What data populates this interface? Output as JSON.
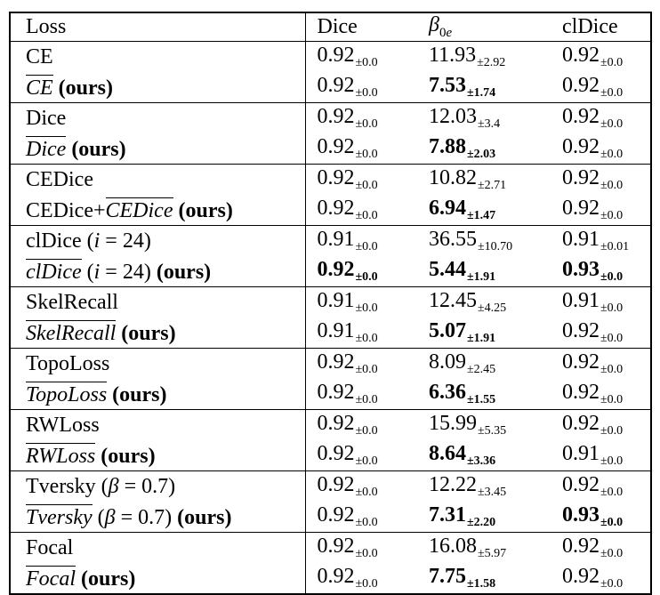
{
  "table": {
    "pm": "±",
    "ours_label": "(ours)",
    "columns": [
      {
        "key": "loss",
        "label": "Loss"
      },
      {
        "key": "dice",
        "label": "Dice"
      },
      {
        "key": "b0e",
        "base": "β",
        "sub_num": "0",
        "sub_letter": "e"
      },
      {
        "key": "cldice",
        "label": "clDice"
      }
    ],
    "groups": [
      {
        "rows": [
          {
            "label": [
              {
                "t": "CE",
                "s": "plain"
              }
            ],
            "ours": false,
            "dice": {
              "v": "0.92",
              "sd": "0.0",
              "bold": false
            },
            "b0e": {
              "v": "11.93",
              "sd": "2.92",
              "bold": false
            },
            "cldice": {
              "v": "0.92",
              "sd": "0.0",
              "bold": false
            }
          },
          {
            "label": [
              {
                "t": "CE",
                "s": "ov"
              }
            ],
            "ours": true,
            "dice": {
              "v": "0.92",
              "sd": "0.0",
              "bold": false
            },
            "b0e": {
              "v": "7.53",
              "sd": "1.74",
              "bold": true
            },
            "cldice": {
              "v": "0.92",
              "sd": "0.0",
              "bold": false
            }
          }
        ]
      },
      {
        "rows": [
          {
            "label": [
              {
                "t": "Dice",
                "s": "plain"
              }
            ],
            "ours": false,
            "dice": {
              "v": "0.92",
              "sd": "0.0",
              "bold": false
            },
            "b0e": {
              "v": "12.03",
              "sd": "3.4",
              "bold": false
            },
            "cldice": {
              "v": "0.92",
              "sd": "0.0",
              "bold": false
            }
          },
          {
            "label": [
              {
                "t": "Dice",
                "s": "ov"
              }
            ],
            "ours": true,
            "dice": {
              "v": "0.92",
              "sd": "0.0",
              "bold": false
            },
            "b0e": {
              "v": "7.88",
              "sd": "2.03",
              "bold": true
            },
            "cldice": {
              "v": "0.92",
              "sd": "0.0",
              "bold": false
            }
          }
        ]
      },
      {
        "rows": [
          {
            "label": [
              {
                "t": "CEDice",
                "s": "plain"
              }
            ],
            "ours": false,
            "dice": {
              "v": "0.92",
              "sd": "0.0",
              "bold": false
            },
            "b0e": {
              "v": "10.82",
              "sd": "2.71",
              "bold": false
            },
            "cldice": {
              "v": "0.92",
              "sd": "0.0",
              "bold": false
            }
          },
          {
            "label": [
              {
                "t": "CEDice+",
                "s": "plain"
              },
              {
                "t": "CEDice",
                "s": "ov"
              }
            ],
            "ours": true,
            "dice": {
              "v": "0.92",
              "sd": "0.0",
              "bold": false
            },
            "b0e": {
              "v": "6.94",
              "sd": "1.47",
              "bold": true
            },
            "cldice": {
              "v": "0.92",
              "sd": "0.0",
              "bold": false
            }
          }
        ]
      },
      {
        "rows": [
          {
            "label": [
              {
                "t": "clDice (",
                "s": "plain"
              },
              {
                "t": "i",
                "s": "it"
              },
              {
                "t": " = 24)",
                "s": "plain"
              }
            ],
            "ours": false,
            "dice": {
              "v": "0.91",
              "sd": "0.0",
              "bold": false
            },
            "b0e": {
              "v": "36.55",
              "sd": "10.70",
              "bold": false
            },
            "cldice": {
              "v": "0.91",
              "sd": "0.01",
              "bold": false
            }
          },
          {
            "label": [
              {
                "t": "clDice",
                "s": "ov"
              },
              {
                "t": " (",
                "s": "plain"
              },
              {
                "t": "i",
                "s": "it"
              },
              {
                "t": " = 24)",
                "s": "plain"
              }
            ],
            "ours": true,
            "dice": {
              "v": "0.92",
              "sd": "0.0",
              "bold": true
            },
            "b0e": {
              "v": "5.44",
              "sd": "1.91",
              "bold": true
            },
            "cldice": {
              "v": "0.93",
              "sd": "0.0",
              "bold": true
            }
          }
        ]
      },
      {
        "rows": [
          {
            "label": [
              {
                "t": "SkelRecall",
                "s": "plain"
              }
            ],
            "ours": false,
            "dice": {
              "v": "0.91",
              "sd": "0.0",
              "bold": false
            },
            "b0e": {
              "v": "12.45",
              "sd": "4.25",
              "bold": false
            },
            "cldice": {
              "v": "0.91",
              "sd": "0.0",
              "bold": false
            }
          },
          {
            "label": [
              {
                "t": "SkelRecall",
                "s": "ov"
              }
            ],
            "ours": true,
            "dice": {
              "v": "0.91",
              "sd": "0.0",
              "bold": false
            },
            "b0e": {
              "v": "5.07",
              "sd": "1.91",
              "bold": true
            },
            "cldice": {
              "v": "0.92",
              "sd": "0.0",
              "bold": false
            }
          }
        ]
      },
      {
        "rows": [
          {
            "label": [
              {
                "t": "TopoLoss",
                "s": "plain"
              }
            ],
            "ours": false,
            "dice": {
              "v": "0.92",
              "sd": "0.0",
              "bold": false
            },
            "b0e": {
              "v": "8.09",
              "sd": "2.45",
              "bold": false
            },
            "cldice": {
              "v": "0.92",
              "sd": "0.0",
              "bold": false
            }
          },
          {
            "label": [
              {
                "t": "TopoLoss",
                "s": "ov"
              }
            ],
            "ours": true,
            "dice": {
              "v": "0.92",
              "sd": "0.0",
              "bold": false
            },
            "b0e": {
              "v": "6.36",
              "sd": "1.55",
              "bold": true
            },
            "cldice": {
              "v": "0.92",
              "sd": "0.0",
              "bold": false
            }
          }
        ]
      },
      {
        "rows": [
          {
            "label": [
              {
                "t": "RWLoss",
                "s": "plain"
              }
            ],
            "ours": false,
            "dice": {
              "v": "0.92",
              "sd": "0.0",
              "bold": false
            },
            "b0e": {
              "v": "15.99",
              "sd": "5.35",
              "bold": false
            },
            "cldice": {
              "v": "0.92",
              "sd": "0.0",
              "bold": false
            }
          },
          {
            "label": [
              {
                "t": "RWLoss",
                "s": "ov"
              }
            ],
            "ours": true,
            "dice": {
              "v": "0.92",
              "sd": "0.0",
              "bold": false
            },
            "b0e": {
              "v": "8.64",
              "sd": "3.36",
              "bold": true
            },
            "cldice": {
              "v": "0.91",
              "sd": "0.0",
              "bold": false
            }
          }
        ]
      },
      {
        "rows": [
          {
            "label": [
              {
                "t": "Tversky (",
                "s": "plain"
              },
              {
                "t": "β",
                "s": "it"
              },
              {
                "t": " = 0.7)",
                "s": "plain"
              }
            ],
            "ours": false,
            "dice": {
              "v": "0.92",
              "sd": "0.0",
              "bold": false
            },
            "b0e": {
              "v": "12.22",
              "sd": "3.45",
              "bold": false
            },
            "cldice": {
              "v": "0.92",
              "sd": "0.0",
              "bold": false
            }
          },
          {
            "label": [
              {
                "t": "Tversky",
                "s": "ov"
              },
              {
                "t": " (",
                "s": "plain"
              },
              {
                "t": "β",
                "s": "it"
              },
              {
                "t": " = 0.7)",
                "s": "plain"
              }
            ],
            "ours": true,
            "dice": {
              "v": "0.92",
              "sd": "0.0",
              "bold": false
            },
            "b0e": {
              "v": "7.31",
              "sd": "2.20",
              "bold": true
            },
            "cldice": {
              "v": "0.93",
              "sd": "0.0",
              "bold": true
            }
          }
        ]
      },
      {
        "rows": [
          {
            "label": [
              {
                "t": "Focal",
                "s": "plain"
              }
            ],
            "ours": false,
            "dice": {
              "v": "0.92",
              "sd": "0.0",
              "bold": false
            },
            "b0e": {
              "v": "16.08",
              "sd": "5.97",
              "bold": false
            },
            "cldice": {
              "v": "0.92",
              "sd": "0.0",
              "bold": false
            }
          },
          {
            "label": [
              {
                "t": "Focal",
                "s": "ov"
              }
            ],
            "ours": true,
            "dice": {
              "v": "0.92",
              "sd": "0.0",
              "bold": false
            },
            "b0e": {
              "v": "7.75",
              "sd": "1.58",
              "bold": true
            },
            "cldice": {
              "v": "0.92",
              "sd": "0.0",
              "bold": false
            }
          }
        ]
      }
    ]
  }
}
